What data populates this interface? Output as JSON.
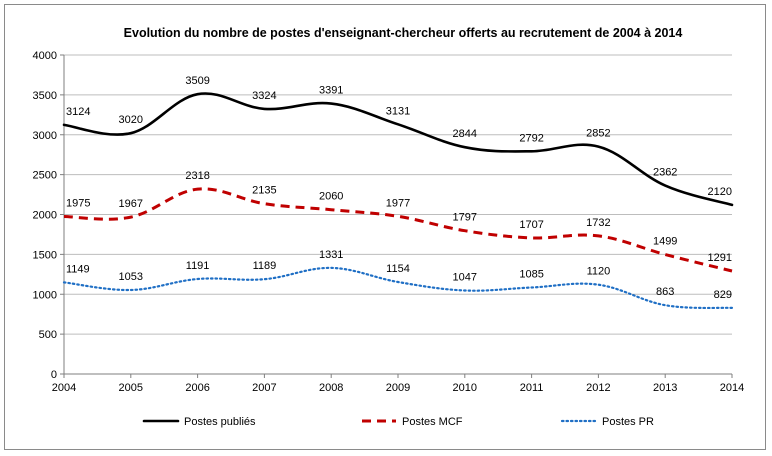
{
  "chart_data": {
    "type": "line",
    "title": "Evolution du nombre de postes d'enseignant-chercheur offerts au recrutement de 2004 à 2014",
    "xlabel": "",
    "ylabel": "",
    "x": [
      "2004",
      "2005",
      "2006",
      "2007",
      "2008",
      "2009",
      "2010",
      "2011",
      "2012",
      "2013",
      "2014"
    ],
    "ylim": [
      0,
      4000
    ],
    "yticks": [
      "0",
      "500",
      "1000",
      "1500",
      "2000",
      "2500",
      "3000",
      "3500",
      "4000"
    ],
    "grid": "horizontal",
    "legend_position": "bottom",
    "series": [
      {
        "name": "Postes publiés",
        "color": "#000000",
        "style": "solid",
        "values": [
          3124,
          3020,
          3509,
          3324,
          3391,
          3131,
          2844,
          2792,
          2852,
          2362,
          2120
        ],
        "labels": [
          "3124",
          "3020",
          "3509",
          "3324",
          "3391",
          "3131",
          "2844",
          "2792",
          "2852",
          "2362",
          "2120"
        ]
      },
      {
        "name": "Postes MCF",
        "color": "#c00000",
        "style": "dashed",
        "values": [
          1975,
          1967,
          2318,
          2135,
          2060,
          1977,
          1797,
          1707,
          1732,
          1499,
          1291
        ],
        "labels": [
          "1975",
          "1967",
          "2318",
          "2135",
          "2060",
          "1977",
          "1797",
          "1707",
          "1732",
          "1499",
          "1291"
        ]
      },
      {
        "name": "Postes PR",
        "color": "#1f6fc5",
        "style": "dotted",
        "values": [
          1149,
          1053,
          1191,
          1189,
          1331,
          1154,
          1047,
          1085,
          1120,
          863,
          829
        ],
        "labels": [
          "1149",
          "1053",
          "1191",
          "1189",
          "1331",
          "1154",
          "1047",
          "1085",
          "1120",
          "863",
          "829"
        ]
      }
    ]
  }
}
